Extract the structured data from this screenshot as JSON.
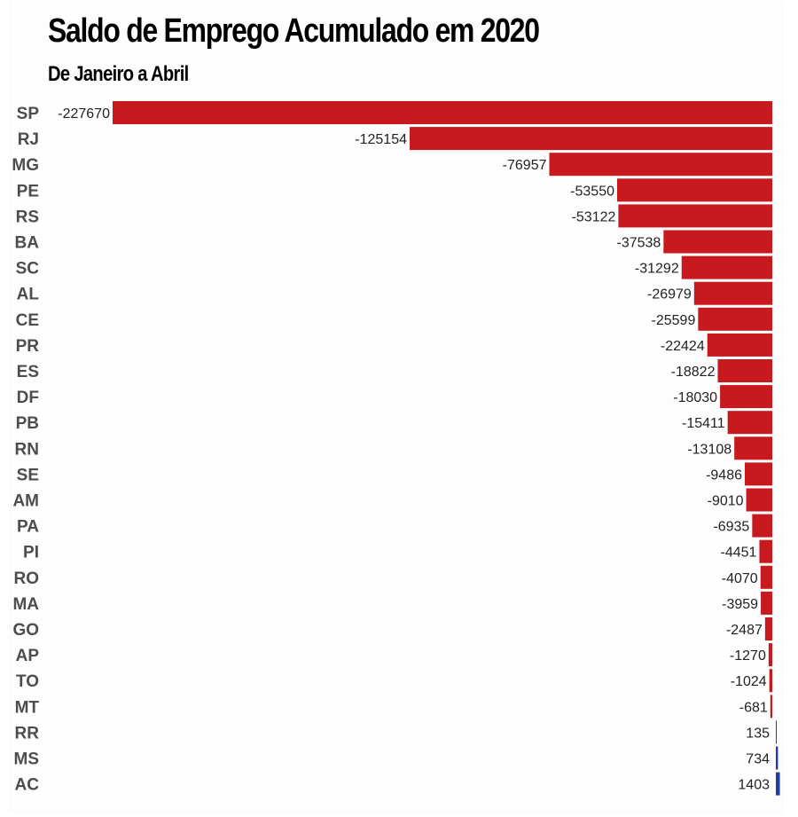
{
  "chart_data": {
    "type": "bar",
    "orientation": "horizontal",
    "title": "Saldo de Emprego Acumulado em 2020",
    "subtitle": "De Janeiro a Abril",
    "categories": [
      "SP",
      "RJ",
      "MG",
      "PE",
      "RS",
      "BA",
      "SC",
      "AL",
      "CE",
      "PR",
      "ES",
      "DF",
      "PB",
      "RN",
      "SE",
      "AM",
      "PA",
      "PI",
      "RO",
      "MA",
      "GO",
      "AP",
      "TO",
      "MT",
      "RR",
      "MS",
      "AC"
    ],
    "values": [
      -227670,
      -125154,
      -76957,
      -53550,
      -53122,
      -37538,
      -31292,
      -26979,
      -25599,
      -22424,
      -18822,
      -18030,
      -15411,
      -13108,
      -9486,
      -9010,
      -6935,
      -4451,
      -4070,
      -3959,
      -2487,
      -1270,
      -1024,
      -681,
      135,
      734,
      1403
    ],
    "xlim": [
      -227670,
      1403
    ],
    "grid": false,
    "legend": "none",
    "colors": {
      "negative": "#c8191e",
      "positive": "#1f3fa3"
    }
  }
}
